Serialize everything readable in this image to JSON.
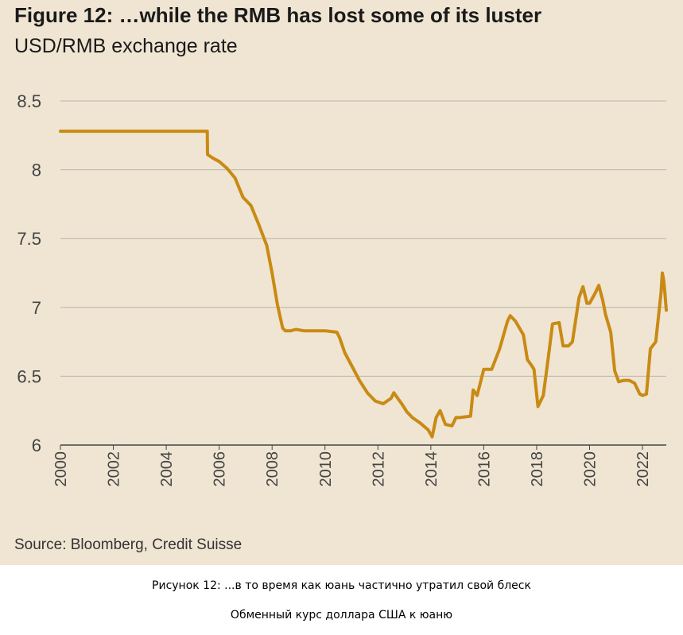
{
  "figure": {
    "title": "Figure 12: …while the RMB has lost some of its luster",
    "subtitle": "USD/RMB exchange rate",
    "source": "Source: Bloomberg, Credit Suisse"
  },
  "captions": {
    "line1": "Рисунок 12: ...в то время как юань частично утратил свой блеск",
    "line2": "Обменный курс доллара США к юаню"
  },
  "colors": {
    "background": "#efe5d2",
    "line": "#c98a14",
    "grid": "#b9b3aa",
    "axis": "#444444"
  },
  "chart_data": {
    "type": "line",
    "title": "Figure 12: …while the RMB has lost some of its luster",
    "ylabel": "USD/RMB exchange rate",
    "xlabel": "",
    "xlim": [
      2000,
      2022.9
    ],
    "ylim": [
      6,
      8.5
    ],
    "y_ticks": [
      "6",
      "6.5",
      "7",
      "7.5",
      "8",
      "8.5"
    ],
    "x_ticks": [
      "2000",
      "2002",
      "2004",
      "2006",
      "2008",
      "2010",
      "2012",
      "2014",
      "2016",
      "2018",
      "2020",
      "2022"
    ],
    "grid": true,
    "series": [
      {
        "name": "USD/RMB",
        "x": [
          2000,
          2005.55,
          2005.56,
          2005.8,
          2006.0,
          2006.3,
          2006.6,
          2006.9,
          2007.2,
          2007.5,
          2007.8,
          2008.0,
          2008.2,
          2008.4,
          2008.5,
          2008.7,
          2008.9,
          2009.2,
          2009.6,
          2010.0,
          2010.45,
          2010.55,
          2010.75,
          2011.0,
          2011.3,
          2011.6,
          2011.9,
          2012.2,
          2012.5,
          2012.6,
          2012.9,
          2013.1,
          2013.3,
          2013.6,
          2013.9,
          2014.05,
          2014.2,
          2014.35,
          2014.55,
          2014.8,
          2014.95,
          2015.1,
          2015.5,
          2015.6,
          2015.75,
          2016.0,
          2016.1,
          2016.3,
          2016.6,
          2016.9,
          2017.0,
          2017.2,
          2017.5,
          2017.65,
          2017.8,
          2017.9,
          2018.05,
          2018.25,
          2018.45,
          2018.6,
          2018.85,
          2019.0,
          2019.2,
          2019.35,
          2019.6,
          2019.75,
          2019.9,
          2020.0,
          2020.2,
          2020.35,
          2020.5,
          2020.6,
          2020.8,
          2020.95,
          2021.1,
          2021.3,
          2021.5,
          2021.7,
          2021.9,
          2022.0,
          2022.15,
          2022.3,
          2022.5,
          2022.7,
          2022.75,
          2022.8,
          2022.85,
          2022.9
        ],
        "values": [
          8.28,
          8.28,
          8.11,
          8.08,
          8.06,
          8.01,
          7.94,
          7.8,
          7.74,
          7.6,
          7.45,
          7.25,
          7.02,
          6.85,
          6.83,
          6.83,
          6.84,
          6.83,
          6.83,
          6.83,
          6.82,
          6.78,
          6.67,
          6.58,
          6.47,
          6.38,
          6.32,
          6.3,
          6.34,
          6.38,
          6.3,
          6.24,
          6.2,
          6.16,
          6.11,
          6.06,
          6.2,
          6.25,
          6.15,
          6.14,
          6.2,
          6.2,
          6.21,
          6.4,
          6.36,
          6.55,
          6.55,
          6.55,
          6.7,
          6.9,
          6.94,
          6.9,
          6.8,
          6.62,
          6.58,
          6.55,
          6.28,
          6.36,
          6.65,
          6.88,
          6.89,
          6.72,
          6.72,
          6.75,
          7.07,
          7.15,
          7.03,
          7.03,
          7.1,
          7.16,
          7.05,
          6.95,
          6.82,
          6.54,
          6.46,
          6.47,
          6.47,
          6.45,
          6.37,
          6.36,
          6.37,
          6.7,
          6.75,
          7.1,
          7.25,
          7.2,
          7.1,
          6.98
        ]
      }
    ]
  }
}
